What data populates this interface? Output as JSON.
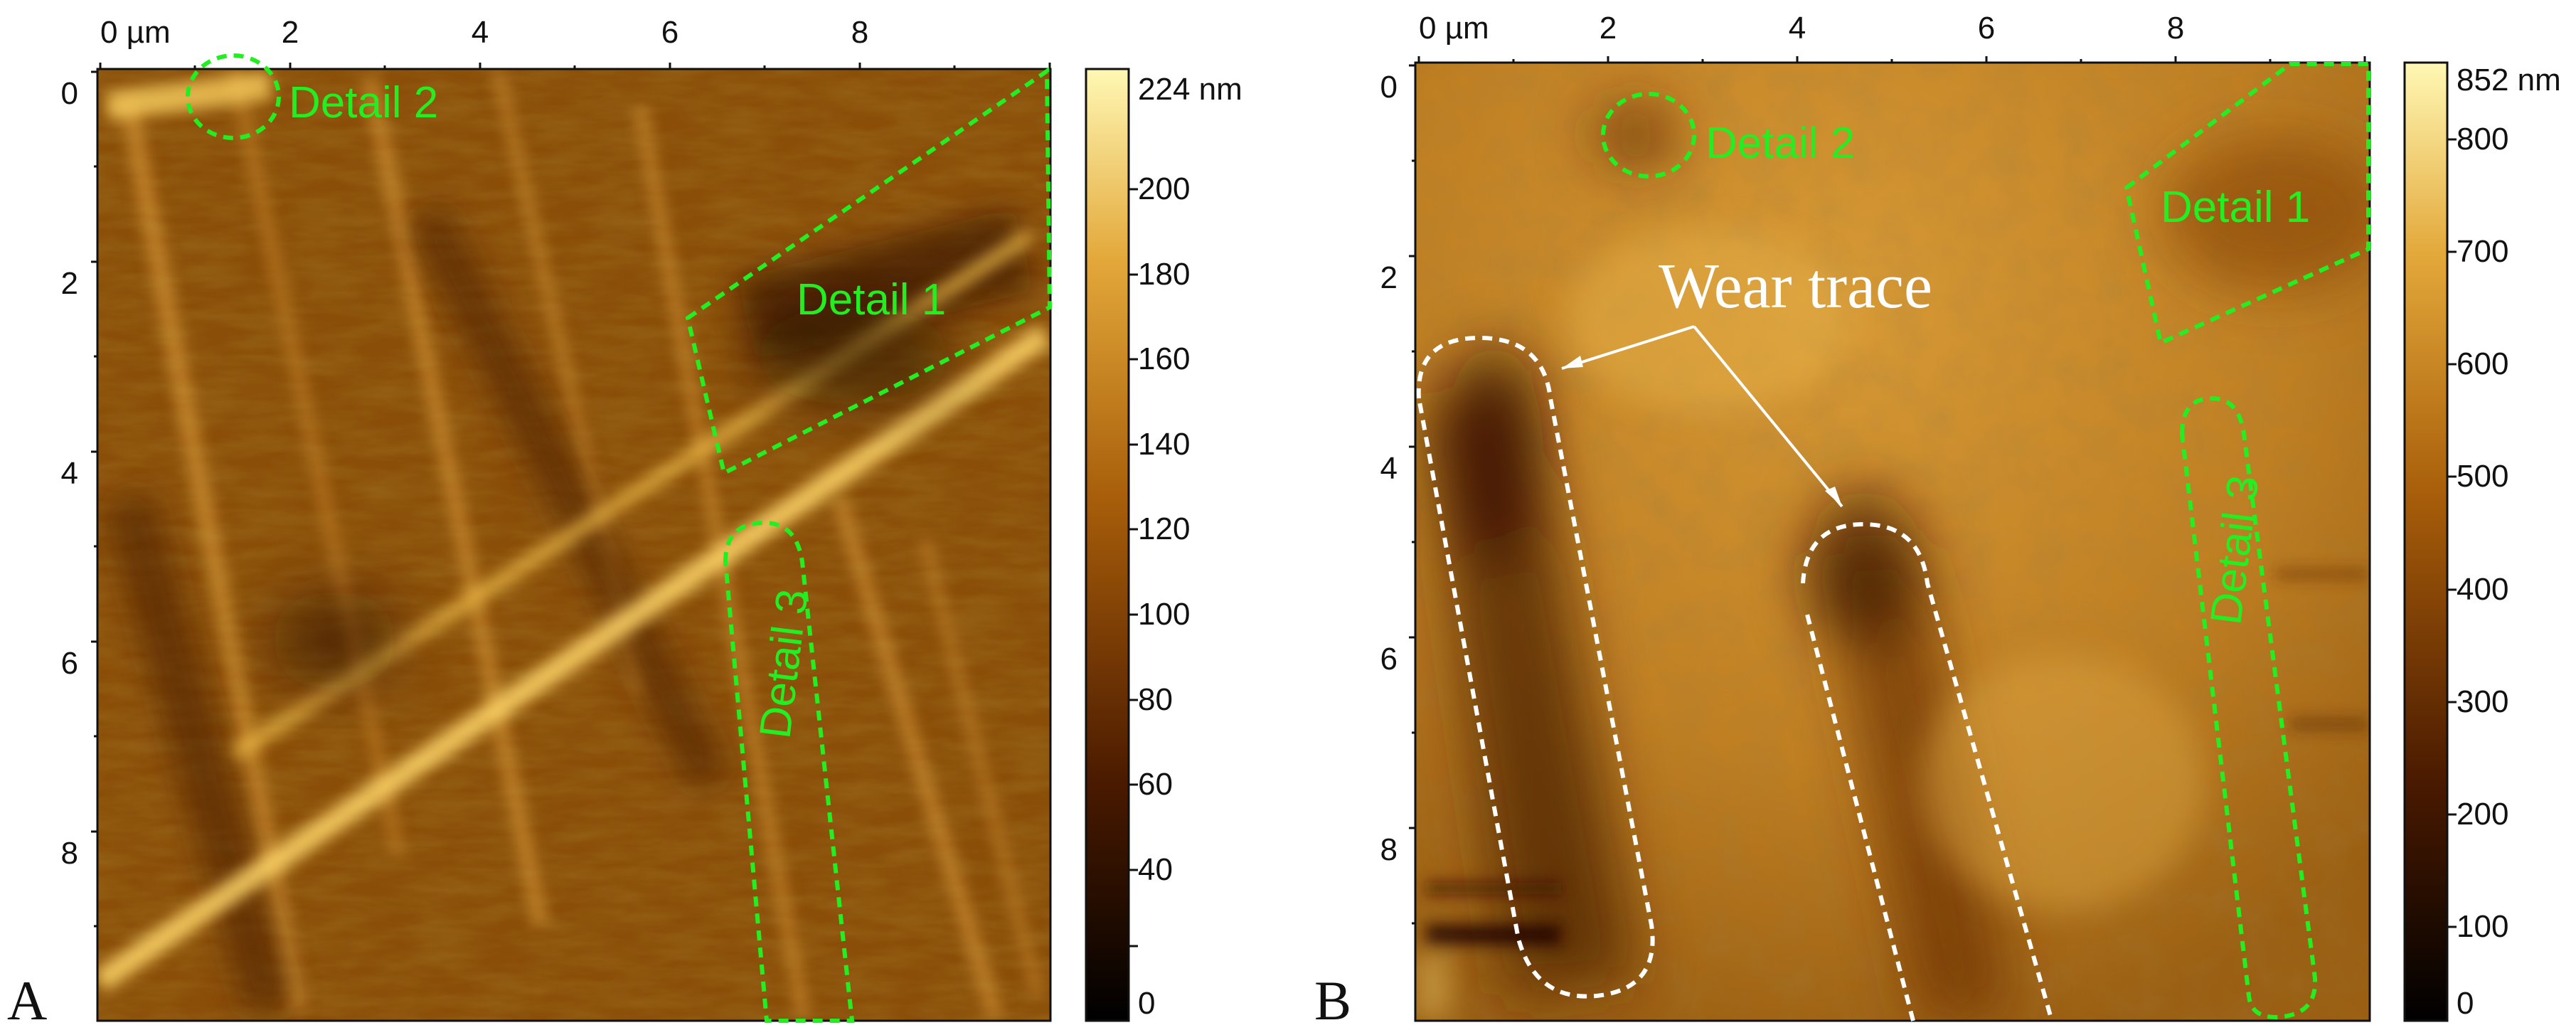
{
  "panels": [
    {
      "id": "A",
      "letter": "A",
      "x_ticks": [
        "0 µm",
        "2",
        "4",
        "6",
        "8"
      ],
      "y_ticks": [
        "0",
        "2",
        "4",
        "6",
        "8"
      ],
      "colorbar": {
        "max_label": "224 nm",
        "ticks": [
          "200",
          "180",
          "160",
          "140",
          "120",
          "100",
          "80",
          "60",
          "40",
          "0"
        ]
      },
      "annotations": {
        "detail1": "Detail 1",
        "detail2": "Detail 2",
        "detail3": "Detail 3"
      }
    },
    {
      "id": "B",
      "letter": "B",
      "x_ticks": [
        "0 µm",
        "2",
        "4",
        "6",
        "8"
      ],
      "y_ticks": [
        "0",
        "2",
        "4",
        "6",
        "8"
      ],
      "colorbar": {
        "max_label": "852 nm",
        "ticks": [
          "800",
          "700",
          "600",
          "500",
          "400",
          "300",
          "200",
          "100",
          "0"
        ]
      },
      "annotations": {
        "detail1": "Detail 1",
        "detail2": "Detail 2",
        "detail3": "Detail 3",
        "wear_trace": "Wear trace"
      }
    }
  ],
  "colors": {
    "afm_dark": "#2a1000",
    "afm_mid": "#9c5a08",
    "afm_light": "#ffe98a",
    "annotation_green": "#22ee22",
    "annotation_white": "#ffffff"
  }
}
